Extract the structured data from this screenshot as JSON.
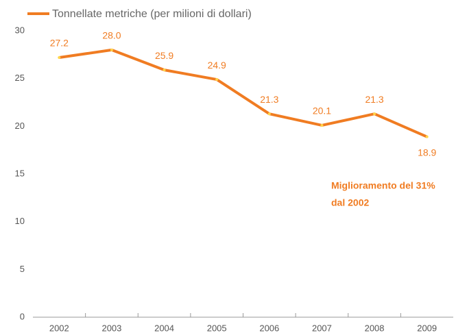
{
  "chart_data": {
    "type": "line",
    "legend_label": "Tonnellate metriche (per milioni di dollari)",
    "categories": [
      "2002",
      "2003",
      "2004",
      "2005",
      "2006",
      "2007",
      "2008",
      "2009"
    ],
    "series": [
      {
        "name": "Tonnellate metriche (per milioni di dollari)",
        "color": "#f07c22",
        "values": [
          27.2,
          28.0,
          25.9,
          24.9,
          21.3,
          20.1,
          21.3,
          18.9
        ],
        "value_labels": [
          "27.2",
          "28.0",
          "25.9",
          "24.9",
          "21.3",
          "20.1",
          "21.3",
          "18.9"
        ]
      }
    ],
    "ylim": [
      0,
      30
    ],
    "yticks": [
      0,
      5,
      10,
      15,
      20,
      25,
      30
    ],
    "annotation": [
      "Miglioramento del 31%",
      "dal 2002"
    ]
  }
}
